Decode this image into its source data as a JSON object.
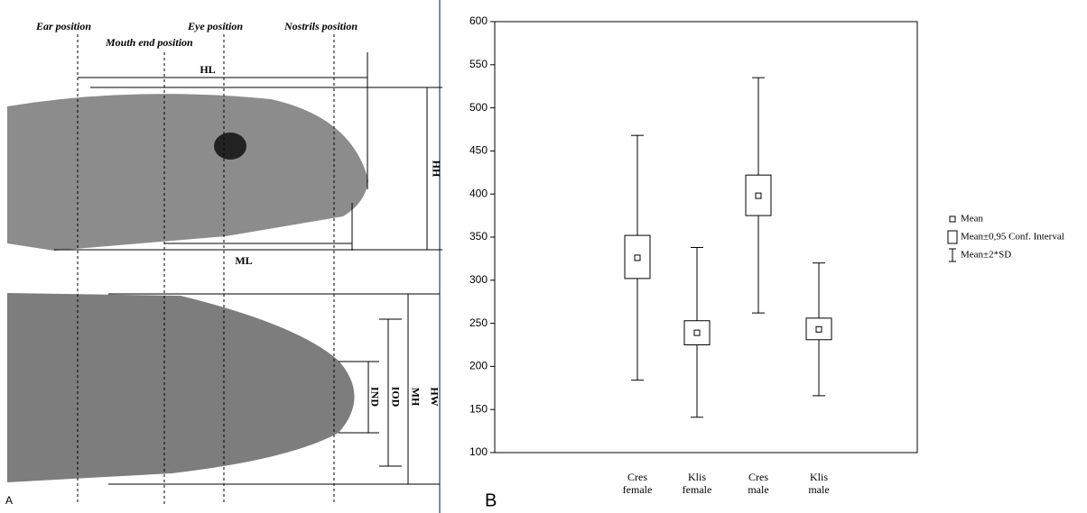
{
  "panel_a": {
    "label": "A",
    "ear": "Ear position",
    "mouth": "Mouth end position",
    "eye": "Eye position",
    "nostrils": "Nostrils position",
    "hl": "HL",
    "hh": "HH",
    "ml": "ML",
    "ind": "IND",
    "iod": "IOD",
    "mh": "MH",
    "hw": "HW"
  },
  "chart_data": {
    "type": "box",
    "panel_label": "B",
    "categories": [
      "Cres\nfemale",
      "Klis\nfemale",
      "Cres\nmale",
      "Klis\nmale"
    ],
    "mean": [
      326,
      239,
      398,
      243
    ],
    "ci_low": [
      302,
      225,
      375,
      231
    ],
    "ci_high": [
      352,
      253,
      422,
      256
    ],
    "low": [
      184,
      141,
      262,
      166
    ],
    "high": [
      468,
      338,
      535,
      320
    ],
    "ylim": [
      100,
      600
    ],
    "yticks": [
      100,
      150,
      200,
      250,
      300,
      350,
      400,
      450,
      500,
      550,
      600
    ],
    "legend": {
      "mean": "Mean",
      "ci": "Mean±0,95 Conf. Interval",
      "sd": "Mean±2*SD"
    }
  }
}
